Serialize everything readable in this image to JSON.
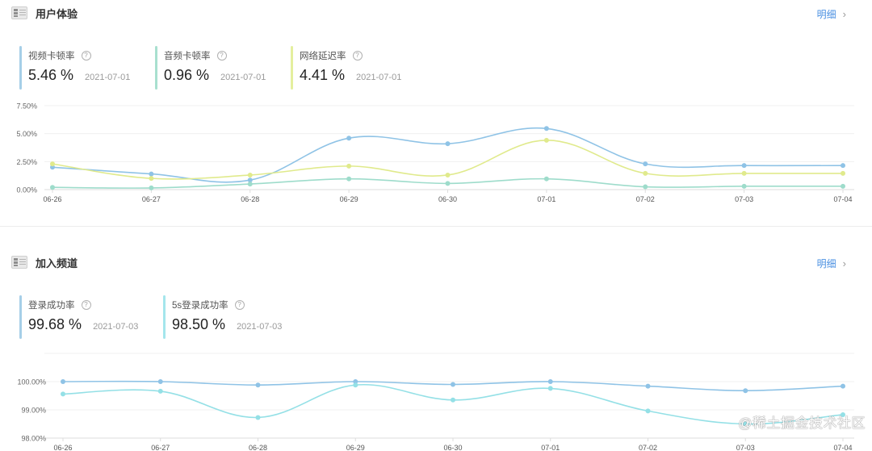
{
  "sections": [
    {
      "title": "用户体验",
      "detail_label": "明细",
      "metrics": [
        {
          "label": "视频卡顿率",
          "value": "5.46 %",
          "date": "2021-07-01",
          "color": "#a6cfe8"
        },
        {
          "label": "音频卡顿率",
          "value": "0.96 %",
          "date": "2021-07-01",
          "color": "#a8e0cf"
        },
        {
          "label": "网络延迟率",
          "value": "4.41 %",
          "date": "2021-07-01",
          "color": "#e4ef9e"
        }
      ]
    },
    {
      "title": "加入频道",
      "detail_label": "明细",
      "metrics": [
        {
          "label": "登录成功率",
          "value": "99.68 %",
          "date": "2021-07-03",
          "color": "#a6cfe8"
        },
        {
          "label": "5s登录成功率",
          "value": "98.50 %",
          "date": "2021-07-03",
          "color": "#a4e6ec"
        }
      ]
    }
  ],
  "help_glyph": "?",
  "chevron_glyph": "›",
  "watermark": "@稀土掘金技术社区",
  "chart_data": [
    {
      "type": "line",
      "title": "用户体验",
      "categories": [
        "06-26",
        "06-27",
        "06-28",
        "06-29",
        "06-30",
        "07-01",
        "07-02",
        "07-03",
        "07-04"
      ],
      "yticks": [
        "0.00%",
        "2.50%",
        "5.00%",
        "7.50%"
      ],
      "ylim": [
        0,
        7.5
      ],
      "grid": true,
      "series": [
        {
          "name": "视频卡顿率",
          "color": "#8fc3e6",
          "values": [
            2.0,
            1.4,
            0.85,
            4.6,
            4.1,
            5.46,
            2.3,
            2.15,
            2.15
          ]
        },
        {
          "name": "网络延迟率",
          "color": "#e0ea8c",
          "values": [
            2.3,
            1.0,
            1.3,
            2.1,
            1.3,
            4.41,
            1.45,
            1.45,
            1.45
          ]
        },
        {
          "name": "音频卡顿率",
          "color": "#9edccb",
          "values": [
            0.2,
            0.15,
            0.5,
            0.96,
            0.55,
            0.96,
            0.25,
            0.3,
            0.3
          ]
        }
      ]
    },
    {
      "type": "line",
      "title": "加入频道",
      "categories": [
        "06-26",
        "06-27",
        "06-28",
        "06-29",
        "06-30",
        "07-01",
        "07-02",
        "07-03",
        "07-04"
      ],
      "yticks": [
        "98.00%",
        "99.00%",
        "100.00%"
      ],
      "ylim": [
        98,
        101
      ],
      "grid": true,
      "series": [
        {
          "name": "登录成功率",
          "color": "#8fc3e6",
          "values": [
            100.0,
            100.0,
            99.88,
            100.0,
            99.9,
            100.0,
            99.84,
            99.68,
            99.84
          ]
        },
        {
          "name": "5s登录成功率",
          "color": "#94e0e6",
          "values": [
            99.56,
            99.66,
            98.73,
            99.88,
            99.35,
            99.76,
            98.96,
            98.5,
            98.83
          ]
        }
      ]
    }
  ]
}
